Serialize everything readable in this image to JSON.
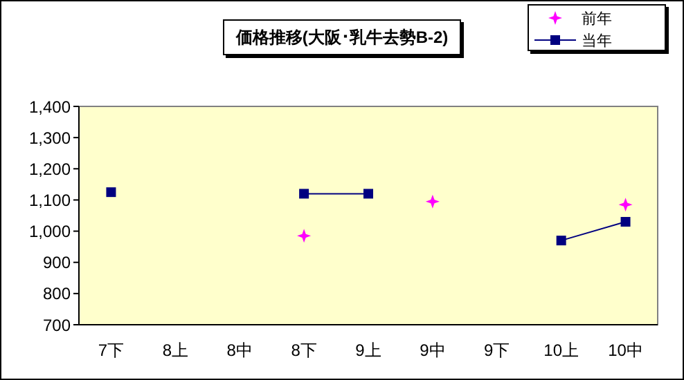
{
  "chart_data": {
    "type": "line",
    "title": "価格推移(大阪･乳牛去勢B-2)",
    "categories": [
      "7下",
      "8上",
      "8中",
      "8下",
      "9上",
      "9中",
      "9下",
      "10上",
      "10中"
    ],
    "series": [
      {
        "name": "前年",
        "type": "scatter",
        "color": "#ff00ff",
        "marker": "star",
        "values": [
          null,
          null,
          null,
          985,
          null,
          1095,
          null,
          null,
          1085
        ]
      },
      {
        "name": "当年",
        "color": "#000080",
        "marker": "square",
        "values": [
          1125,
          null,
          null,
          1120,
          1120,
          null,
          null,
          970,
          1030
        ]
      }
    ],
    "ylim": [
      700,
      1400
    ],
    "yticks": [
      700,
      800,
      900,
      {
        "value": 1000,
        "label": "1,000"
      },
      {
        "value": 1100,
        "label": "1,100"
      },
      {
        "value": 1200,
        "label": "1,200"
      },
      {
        "value": 1300,
        "label": "1,300"
      },
      {
        "value": 1400,
        "label": "1,400"
      }
    ],
    "legend": "top right",
    "line_style": "solid"
  }
}
